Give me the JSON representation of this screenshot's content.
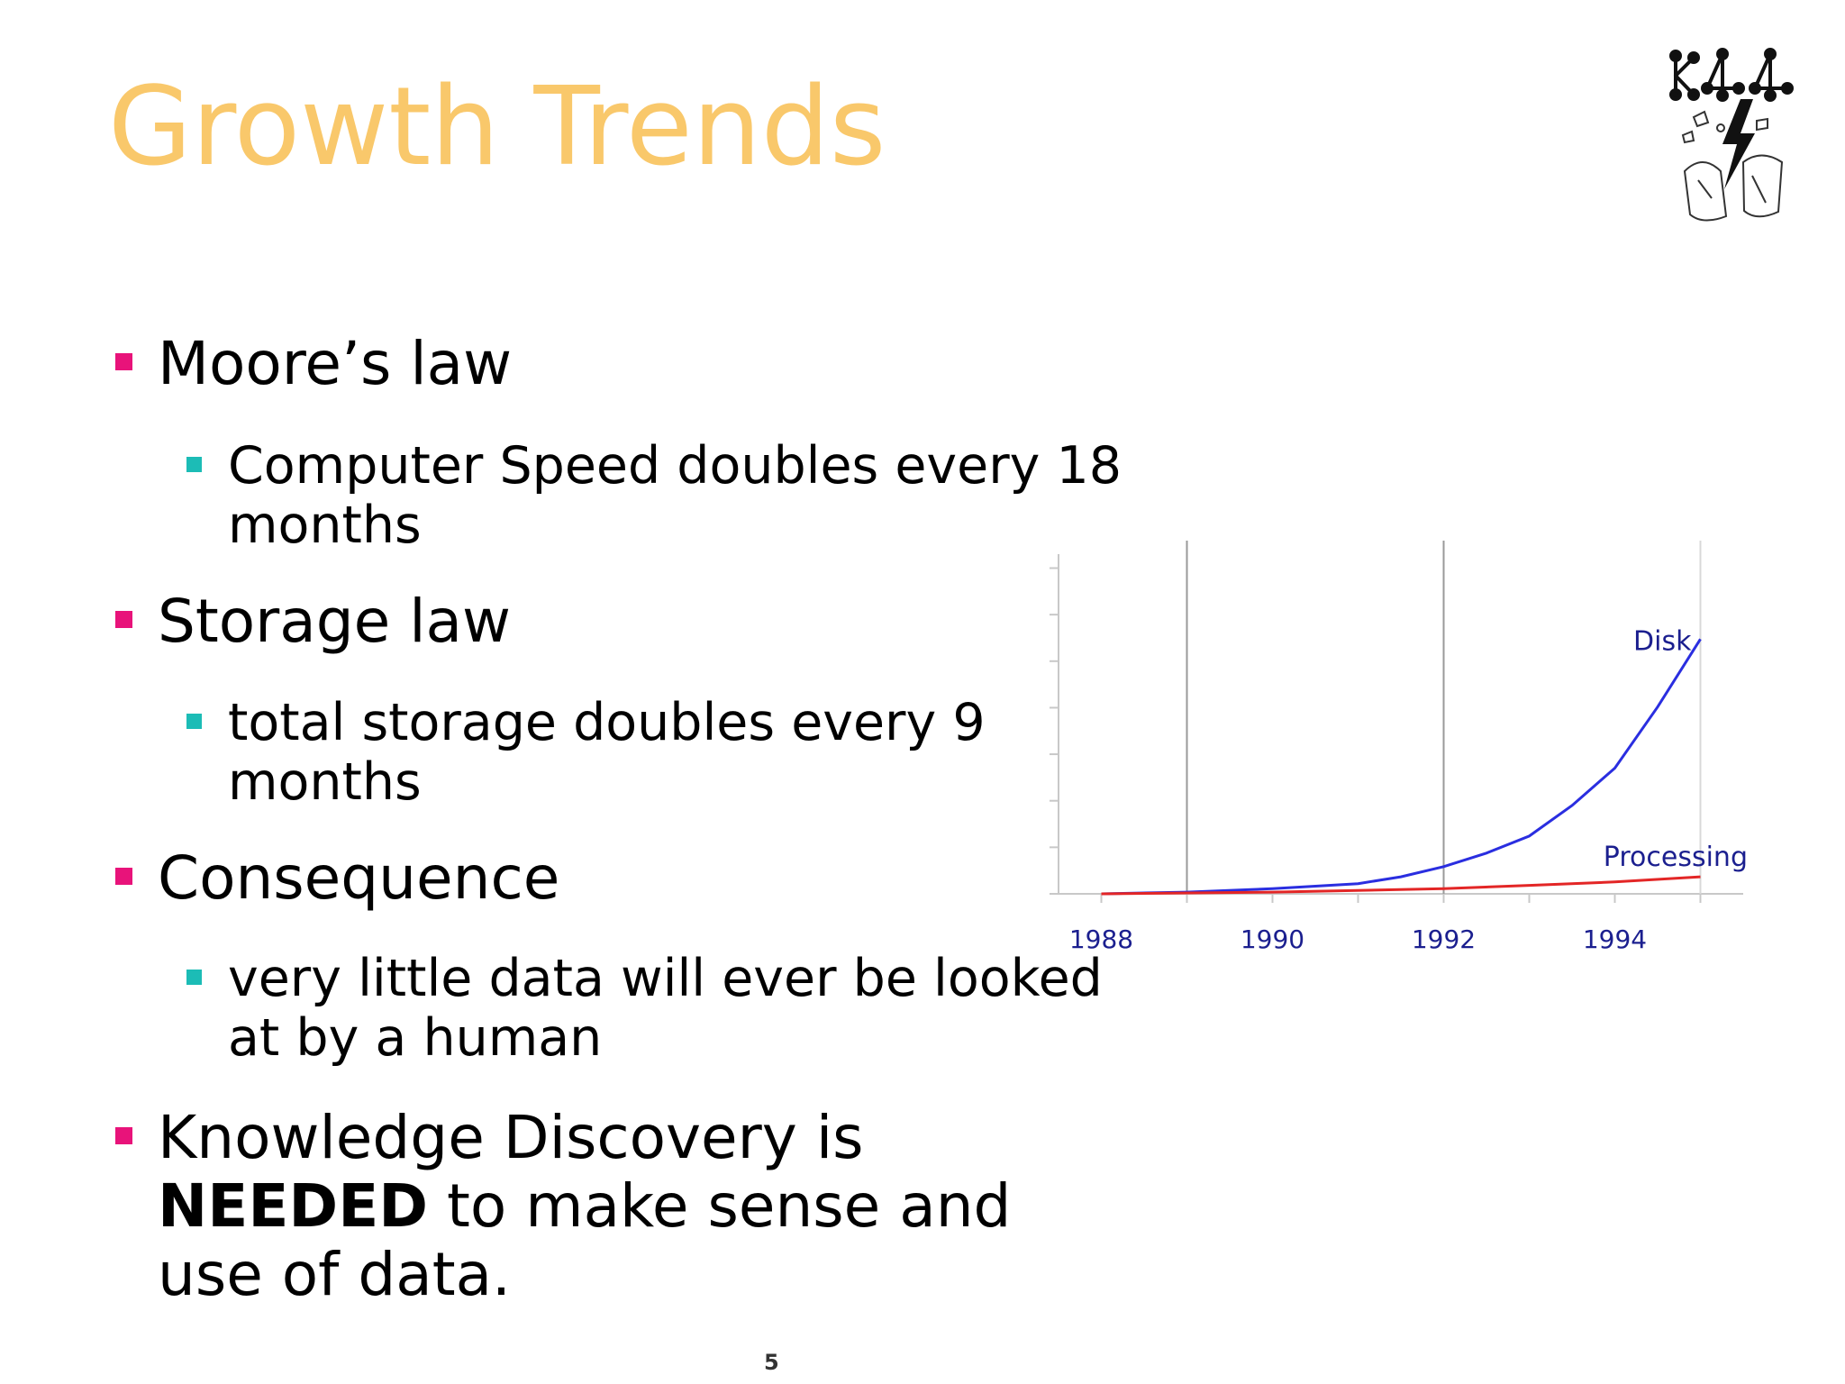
{
  "slide": {
    "title": "Growth Trends",
    "page_number": "5"
  },
  "bullets": [
    {
      "text": "Moore’s law",
      "subs": [
        {
          "text": "Computer Speed doubles every 18 months"
        }
      ]
    },
    {
      "text": "Storage law",
      "subs": [
        {
          "text": "total storage doubles every 9 months"
        }
      ]
    },
    {
      "text": "Consequence",
      "subs": [
        {
          "text": "very little data will ever be looked at by a human"
        }
      ]
    },
    {
      "text_before": "Knowledge Discovery is ",
      "text_bold": "NEEDED",
      "text_after": " to make sense and use of data."
    }
  ],
  "colors": {
    "title": "#f9c86b",
    "bullet_level1": "#e8137a",
    "bullet_level2": "#1cbcb6",
    "disk_line": "#2a2ee0",
    "processing_line": "#e32626"
  },
  "chart_data": {
    "type": "line",
    "title": "",
    "xlabel": "",
    "ylabel": "",
    "x_tick_labels": [
      "1988",
      "1990",
      "1992",
      "1994"
    ],
    "xlim": [
      1987.5,
      1995.5
    ],
    "ylim": [
      0,
      100
    ],
    "grid": "vertical",
    "series": [
      {
        "name": "Disk",
        "x": [
          1988,
          1989,
          1990,
          1991,
          1991.5,
          1992,
          1992.5,
          1993,
          1993.5,
          1994,
          1994.5,
          1995
        ],
        "y": [
          0,
          0.5,
          1.5,
          3,
          5,
          8,
          12,
          17,
          26,
          37,
          55,
          75
        ]
      },
      {
        "name": "Processing",
        "x": [
          1988,
          1990,
          1992,
          1993,
          1994,
          1995
        ],
        "y": [
          0,
          0.5,
          1.5,
          2.5,
          3.5,
          5
        ]
      }
    ]
  }
}
